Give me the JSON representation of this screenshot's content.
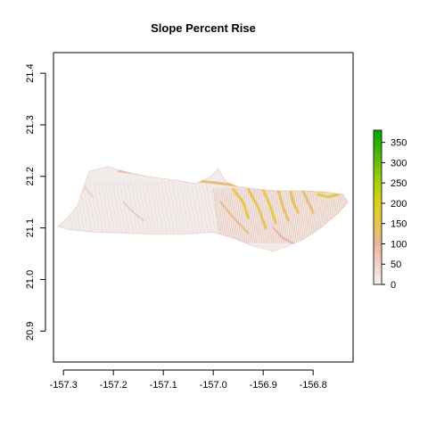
{
  "chart_data": {
    "type": "heatmap",
    "title": "Slope Percent Rise",
    "xlabel": "",
    "ylabel": "",
    "xlim": [
      -157.32,
      -156.72
    ],
    "ylim": [
      20.84,
      21.44
    ],
    "x_ticks": [
      -157.3,
      -157.2,
      -157.1,
      -157.0,
      -156.9,
      -156.8
    ],
    "x_tick_labels": [
      "-157.3",
      "-157.2",
      "-157.1",
      "-157.0",
      "-156.9",
      "-156.8"
    ],
    "y_ticks": [
      20.9,
      21.0,
      21.1,
      21.2,
      21.3,
      21.4
    ],
    "y_tick_labels": [
      "20.9",
      "21.0",
      "21.1",
      "21.2",
      "21.3",
      "21.4"
    ],
    "grid": false,
    "legend": {
      "placement": "right",
      "min": 0,
      "max": 380,
      "ticks": [
        0,
        50,
        100,
        150,
        200,
        250,
        300,
        350
      ],
      "tick_labels": [
        "0",
        "50",
        "100",
        "150",
        "200",
        "250",
        "300",
        "350"
      ],
      "color_stops": [
        {
          "value": 0,
          "color": "#f2f2f2"
        },
        {
          "value": 50,
          "color": "#eed3c6"
        },
        {
          "value": 100,
          "color": "#e8b59b"
        },
        {
          "value": 150,
          "color": "#e6c84e"
        },
        {
          "value": 200,
          "color": "#d9d21a"
        },
        {
          "value": 250,
          "color": "#a8d010"
        },
        {
          "value": 300,
          "color": "#6bbd0c"
        },
        {
          "value": 380,
          "color": "#00a600"
        }
      ]
    },
    "island_outline": [
      [
        -157.311,
        21.103
      ],
      [
        -157.29,
        21.122
      ],
      [
        -157.272,
        21.143
      ],
      [
        -157.26,
        21.178
      ],
      [
        -157.248,
        21.21
      ],
      [
        -157.232,
        21.214
      ],
      [
        -157.21,
        21.219
      ],
      [
        -157.19,
        21.213
      ],
      [
        -157.16,
        21.205
      ],
      [
        -157.12,
        21.198
      ],
      [
        -157.07,
        21.192
      ],
      [
        -157.035,
        21.186
      ],
      [
        -157.005,
        21.2
      ],
      [
        -156.99,
        21.215
      ],
      [
        -156.975,
        21.19
      ],
      [
        -156.95,
        21.18
      ],
      [
        -156.91,
        21.175
      ],
      [
        -156.87,
        21.172
      ],
      [
        -156.82,
        21.172
      ],
      [
        -156.78,
        21.17
      ],
      [
        -156.74,
        21.165
      ],
      [
        -156.73,
        21.15
      ],
      [
        -156.75,
        21.128
      ],
      [
        -156.785,
        21.1
      ],
      [
        -156.82,
        21.078
      ],
      [
        -156.85,
        21.065
      ],
      [
        -156.88,
        21.055
      ],
      [
        -156.92,
        21.065
      ],
      [
        -156.96,
        21.08
      ],
      [
        -157.0,
        21.092
      ],
      [
        -157.06,
        21.088
      ],
      [
        -157.12,
        21.088
      ],
      [
        -157.18,
        21.09
      ],
      [
        -157.24,
        21.092
      ],
      [
        -157.29,
        21.097
      ]
    ],
    "steep_zones": [
      {
        "slope": 120,
        "points": [
          [
            -157.06,
            21.195
          ],
          [
            -156.95,
            21.182
          ],
          [
            -156.85,
            21.175
          ],
          [
            -156.75,
            21.17
          ]
        ]
      },
      {
        "slope": 150,
        "points": [
          [
            -156.96,
            21.175
          ],
          [
            -156.94,
            21.15
          ],
          [
            -156.93,
            21.12
          ]
        ]
      },
      {
        "slope": 140,
        "points": [
          [
            -156.93,
            21.175
          ],
          [
            -156.91,
            21.14
          ],
          [
            -156.895,
            21.1
          ]
        ]
      },
      {
        "slope": 150,
        "points": [
          [
            -156.9,
            21.174
          ],
          [
            -156.885,
            21.14
          ],
          [
            -156.875,
            21.11
          ]
        ]
      },
      {
        "slope": 130,
        "points": [
          [
            -156.87,
            21.173
          ],
          [
            -156.86,
            21.14
          ],
          [
            -156.85,
            21.115
          ]
        ]
      },
      {
        "slope": 140,
        "points": [
          [
            -156.845,
            21.172
          ],
          [
            -156.84,
            21.15
          ],
          [
            -156.83,
            21.13
          ]
        ]
      },
      {
        "slope": 120,
        "points": [
          [
            -156.82,
            21.171
          ],
          [
            -156.81,
            21.15
          ],
          [
            -156.8,
            21.13
          ]
        ]
      },
      {
        "slope": 110,
        "points": [
          [
            -156.985,
            21.15
          ],
          [
            -156.96,
            21.12
          ],
          [
            -156.93,
            21.09
          ]
        ]
      },
      {
        "slope": 100,
        "points": [
          [
            -156.88,
            21.1
          ],
          [
            -156.86,
            21.08
          ],
          [
            -156.84,
            21.07
          ]
        ]
      },
      {
        "slope": 160,
        "points": [
          [
            -156.79,
            21.165
          ],
          [
            -156.77,
            21.16
          ],
          [
            -156.75,
            21.165
          ]
        ]
      },
      {
        "slope": 90,
        "points": [
          [
            -157.19,
            21.21
          ],
          [
            -157.12,
            21.2
          ],
          [
            -157.06,
            21.195
          ]
        ]
      },
      {
        "slope": 60,
        "points": [
          [
            -157.18,
            21.15
          ],
          [
            -157.16,
            21.13
          ],
          [
            -157.14,
            21.115
          ]
        ]
      },
      {
        "slope": 50,
        "points": [
          [
            -157.27,
            21.2
          ],
          [
            -157.255,
            21.175
          ],
          [
            -157.24,
            21.16
          ]
        ]
      }
    ]
  }
}
